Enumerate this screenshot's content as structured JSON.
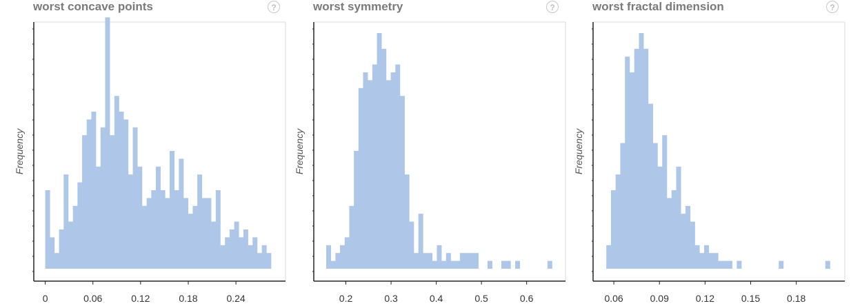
{
  "chart_data": [
    {
      "type": "bar",
      "title": "worst concave points",
      "ylabel": "Frequency",
      "xlabel": "",
      "bar_color": "#aec7e8",
      "x_ticks": [
        0,
        0.06,
        0.12,
        0.18,
        0.24
      ],
      "xlim": [
        -0.0144,
        0.3024
      ],
      "ylim": [
        0,
        30
      ],
      "bin_width": 0.0058,
      "bin_starts": [
        0.0,
        0.0058,
        0.0116,
        0.0174,
        0.0232,
        0.029,
        0.0348,
        0.0406,
        0.0464,
        0.0522,
        0.058,
        0.0638,
        0.0696,
        0.0754,
        0.0812,
        0.087,
        0.0928,
        0.0986,
        0.1044,
        0.1102,
        0.116,
        0.1218,
        0.1276,
        0.1334,
        0.1392,
        0.145,
        0.1508,
        0.1566,
        0.1624,
        0.1682,
        0.174,
        0.1798,
        0.1856,
        0.1914,
        0.1972,
        0.203,
        0.2088,
        0.2146,
        0.2204,
        0.2262,
        0.232,
        0.2378,
        0.2436,
        0.2494,
        0.2552,
        0.261,
        0.2668,
        0.2726,
        0.2784
      ],
      "values": [
        10,
        4,
        2,
        5,
        12,
        6,
        8,
        11,
        17,
        19,
        20,
        13,
        18,
        32,
        17,
        22,
        20,
        19,
        12,
        18,
        13,
        8,
        9,
        10,
        13,
        10,
        9,
        15,
        10,
        14,
        9,
        7,
        8,
        12,
        9,
        9,
        6,
        10,
        3,
        4,
        5,
        6,
        4,
        5,
        3,
        4,
        2,
        3,
        2
      ]
    },
    {
      "type": "bar",
      "title": "worst symmetry",
      "ylabel": "Frequency",
      "xlabel": "",
      "bar_color": "#aec7e8",
      "x_ticks": [
        0.2,
        0.3,
        0.4,
        0.5,
        0.6
      ],
      "xlim": [
        0.129,
        0.686
      ],
      "ylim": [
        0,
        30
      ],
      "bin_width": 0.0102,
      "bin_starts": [
        0.1565,
        0.1667,
        0.1769,
        0.1871,
        0.1973,
        0.2075,
        0.2177,
        0.2279,
        0.2381,
        0.2483,
        0.2585,
        0.2687,
        0.2789,
        0.2891,
        0.2993,
        0.3095,
        0.3197,
        0.3299,
        0.3401,
        0.3503,
        0.3605,
        0.3707,
        0.3809,
        0.3911,
        0.4013,
        0.4115,
        0.4217,
        0.4319,
        0.4421,
        0.4523,
        0.4625,
        0.4727,
        0.4829,
        0.4931,
        0.5033,
        0.5135,
        0.5237,
        0.5339,
        0.5441,
        0.5543,
        0.5645,
        0.5747,
        0.5849,
        0.5951,
        0.6053,
        0.6155,
        0.6257,
        0.6359,
        0.6461
      ],
      "values": [
        3,
        1,
        2,
        3,
        4,
        8,
        15,
        23,
        25,
        24,
        26,
        30,
        28,
        24,
        25,
        26,
        22,
        12,
        6,
        2,
        7,
        2,
        2,
        1,
        3,
        1,
        2,
        1,
        1,
        2,
        2,
        2,
        2,
        0,
        0,
        1,
        0,
        0,
        1,
        1,
        0,
        1,
        0,
        0,
        0,
        0,
        0,
        0,
        1
      ]
    },
    {
      "type": "bar",
      "title": "worst fractal dimension",
      "ylabel": "Frequency",
      "xlabel": "",
      "bar_color": "#aec7e8",
      "x_ticks": [
        0.06,
        0.09,
        0.12,
        0.15,
        0.18
      ],
      "xlim": [
        0.04635,
        0.2119
      ],
      "ylim": [
        0,
        30
      ],
      "bin_width": 0.003065,
      "bin_starts": [
        0.05504,
        0.058105,
        0.06117,
        0.064235,
        0.0673,
        0.070365,
        0.07343,
        0.076495,
        0.07956,
        0.082625,
        0.08569,
        0.088755,
        0.09182,
        0.094885,
        0.09795,
        0.101015,
        0.10408,
        0.107145,
        0.11021,
        0.113275,
        0.11634,
        0.119405,
        0.12247,
        0.125535,
        0.1286,
        0.131665,
        0.13473,
        0.137795,
        0.14086,
        0.143925,
        0.14699,
        0.150055,
        0.15312,
        0.156185,
        0.15925,
        0.162315,
        0.16538,
        0.168445,
        0.17151,
        0.174575,
        0.17764,
        0.180705,
        0.18377,
        0.186835,
        0.1899,
        0.192965,
        0.19603,
        0.199095
      ],
      "values": [
        3,
        10,
        12,
        16,
        27,
        25,
        28,
        30,
        28,
        21,
        16,
        13,
        17,
        9,
        10,
        13,
        7,
        8,
        6,
        3,
        2,
        3,
        2,
        2,
        1,
        1,
        1,
        0,
        1,
        0,
        0,
        0,
        0,
        0,
        0,
        0,
        0,
        1,
        0,
        0,
        0,
        0,
        0,
        0,
        0,
        0,
        0,
        1
      ]
    }
  ],
  "panels": [
    {
      "title": "worst concave points",
      "help": "?"
    },
    {
      "title": "worst symmetry",
      "help": "?"
    },
    {
      "title": "worst fractal dimension",
      "help": "?"
    }
  ]
}
